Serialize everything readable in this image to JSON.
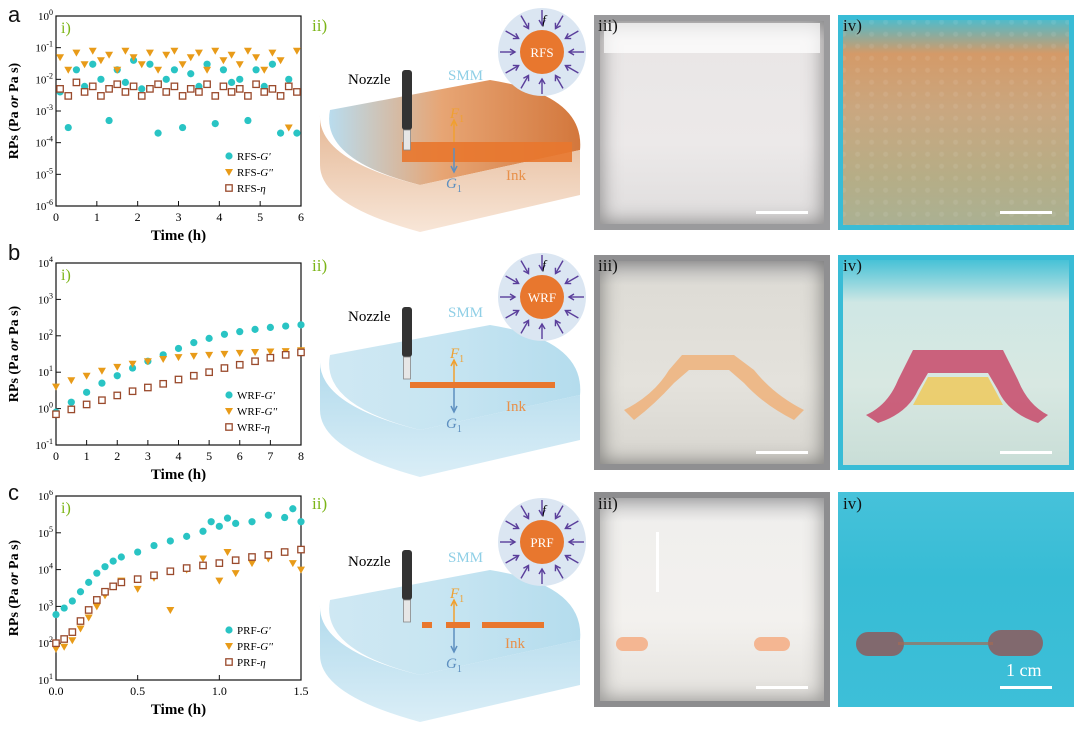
{
  "panels": {
    "a": {
      "letter": "a",
      "sub_i": "i)",
      "sub_ii": "ii)",
      "sub_iii": "iii)",
      "sub_iv": "iv)",
      "fluid": "RFS"
    },
    "b": {
      "letter": "b",
      "sub_i": "i)",
      "sub_ii": "ii)",
      "sub_iii": "iii)",
      "sub_iv": "iv)",
      "fluid": "WRF"
    },
    "c": {
      "letter": "c",
      "sub_i": "i)",
      "sub_ii": "ii)",
      "sub_iii": "iii)",
      "sub_iv": "iv)",
      "fluid": "PRF"
    }
  },
  "schematic": {
    "nozzle": "Nozzle",
    "smm": "SMM",
    "ink": "Ink",
    "force_up": "F",
    "force_down": "G",
    "subscript": "1",
    "f_label": "f"
  },
  "scale_bar_label": "1 cm",
  "colors": {
    "cyan": "#29c4c4",
    "orange": "#e89b19",
    "brown": "#9a4a2c",
    "green_label": "#7cb518",
    "ink_orange": "#e8772e"
  },
  "chart_data": [
    {
      "type": "scatter",
      "ylabel": "RPs (Pa or Pa s)",
      "xlabel": "Time (h)",
      "xlim": [
        0,
        6
      ],
      "xticks": [
        "0",
        "1",
        "2",
        "3",
        "4",
        "5",
        "6"
      ],
      "ylim_log": [
        -6,
        0
      ],
      "yticks": [
        "10^-6",
        "10^-5",
        "10^-4",
        "10^-3",
        "10^-2",
        "10^-1",
        "10^0"
      ],
      "legend_position": "bottom-right",
      "series": [
        {
          "name": "RFS-G'",
          "marker": "circle",
          "color": "#29c4c4",
          "x": [
            0.1,
            0.3,
            0.5,
            0.7,
            0.9,
            1.1,
            1.3,
            1.5,
            1.7,
            1.9,
            2.1,
            2.3,
            2.5,
            2.7,
            2.9,
            3.1,
            3.3,
            3.5,
            3.7,
            3.9,
            4.1,
            4.3,
            4.5,
            4.7,
            4.9,
            5.1,
            5.3,
            5.5,
            5.7,
            5.9
          ],
          "y": [
            0.004,
            0.0003,
            0.02,
            0.006,
            0.03,
            0.01,
            0.0005,
            0.02,
            0.008,
            0.04,
            0.005,
            0.03,
            0.0002,
            0.01,
            0.02,
            0.0003,
            0.015,
            0.006,
            0.03,
            0.0004,
            0.02,
            0.008,
            0.01,
            0.0005,
            0.02,
            0.006,
            0.03,
            0.0002,
            0.01,
            0.0002
          ]
        },
        {
          "name": "RFS-G''",
          "marker": "triangle-down",
          "color": "#e89b19",
          "x": [
            0.1,
            0.3,
            0.5,
            0.7,
            0.9,
            1.1,
            1.3,
            1.5,
            1.7,
            1.9,
            2.1,
            2.3,
            2.5,
            2.7,
            2.9,
            3.1,
            3.3,
            3.5,
            3.7,
            3.9,
            4.1,
            4.3,
            4.5,
            4.7,
            4.9,
            5.1,
            5.3,
            5.5,
            5.7,
            5.9
          ],
          "y": [
            0.05,
            0.02,
            0.07,
            0.03,
            0.08,
            0.04,
            0.06,
            0.02,
            0.08,
            0.05,
            0.03,
            0.07,
            0.02,
            0.06,
            0.08,
            0.03,
            0.05,
            0.07,
            0.02,
            0.08,
            0.04,
            0.06,
            0.03,
            0.08,
            0.05,
            0.02,
            0.07,
            0.04,
            0.0003,
            0.08
          ]
        },
        {
          "name": "RFS-η",
          "marker": "square",
          "color": "#9a4a2c",
          "x": [
            0.1,
            0.3,
            0.5,
            0.7,
            0.9,
            1.1,
            1.3,
            1.5,
            1.7,
            1.9,
            2.1,
            2.3,
            2.5,
            2.7,
            2.9,
            3.1,
            3.3,
            3.5,
            3.7,
            3.9,
            4.1,
            4.3,
            4.5,
            4.7,
            4.9,
            5.1,
            5.3,
            5.5,
            5.7,
            5.9
          ],
          "y": [
            0.005,
            0.003,
            0.008,
            0.004,
            0.006,
            0.003,
            0.005,
            0.007,
            0.004,
            0.006,
            0.003,
            0.005,
            0.007,
            0.004,
            0.006,
            0.003,
            0.005,
            0.004,
            0.007,
            0.003,
            0.006,
            0.004,
            0.005,
            0.003,
            0.007,
            0.004,
            0.005,
            0.003,
            0.006,
            0.004
          ]
        }
      ]
    },
    {
      "type": "scatter",
      "ylabel": "RPs (Pa or Pa s)",
      "xlabel": "Time (h)",
      "xlim": [
        0,
        8
      ],
      "xticks": [
        "0",
        "1",
        "2",
        "3",
        "4",
        "5",
        "6",
        "7",
        "8"
      ],
      "ylim_log": [
        -1,
        4
      ],
      "yticks": [
        "10^-1",
        "10^0",
        "10^1",
        "10^2",
        "10^3",
        "10^4"
      ],
      "legend_position": "bottom-right",
      "series": [
        {
          "name": "WRF-G'",
          "marker": "circle",
          "color": "#29c4c4",
          "x": [
            0,
            0.5,
            1,
            1.5,
            2,
            2.5,
            3,
            3.5,
            4,
            4.5,
            5,
            5.5,
            6,
            6.5,
            7,
            7.5,
            8
          ],
          "y": [
            0.8,
            1.5,
            2.8,
            5,
            8,
            13,
            20,
            30,
            45,
            65,
            85,
            110,
            130,
            150,
            170,
            185,
            200
          ]
        },
        {
          "name": "WRF-G''",
          "marker": "triangle-down",
          "color": "#e89b19",
          "x": [
            0,
            0.5,
            1,
            1.5,
            2,
            2.5,
            3,
            3.5,
            4,
            4.5,
            5,
            5.5,
            6,
            6.5,
            7,
            7.5,
            8
          ],
          "y": [
            4,
            6,
            8,
            11,
            14,
            17,
            20,
            23,
            26,
            28,
            30,
            32,
            34,
            36,
            37,
            38,
            40
          ]
        },
        {
          "name": "WRF-η",
          "marker": "square",
          "color": "#9a4a2c",
          "x": [
            0,
            0.5,
            1,
            1.5,
            2,
            2.5,
            3,
            3.5,
            4,
            4.5,
            5,
            5.5,
            6,
            6.5,
            7,
            7.5,
            8
          ],
          "y": [
            0.7,
            0.95,
            1.3,
            1.7,
            2.3,
            3,
            3.8,
            4.8,
            6.3,
            8,
            10,
            13,
            16,
            20,
            25,
            30,
            35
          ]
        }
      ]
    },
    {
      "type": "scatter",
      "ylabel": "RPs (Pa or Pa s)",
      "xlabel": "Time (h)",
      "xlim": [
        0,
        1.5
      ],
      "xticks": [
        "0.0",
        "0.5",
        "1.0",
        "1.5"
      ],
      "ylim_log": [
        1,
        6
      ],
      "yticks": [
        "10^1",
        "10^2",
        "10^3",
        "10^4",
        "10^5",
        "10^6"
      ],
      "legend_position": "bottom-right",
      "series": [
        {
          "name": "PRF-G'",
          "marker": "circle",
          "color": "#29c4c4",
          "x": [
            0,
            0.05,
            0.1,
            0.15,
            0.2,
            0.25,
            0.3,
            0.35,
            0.4,
            0.5,
            0.6,
            0.7,
            0.8,
            0.9,
            0.95,
            1.0,
            1.05,
            1.1,
            1.2,
            1.3,
            1.4,
            1.45,
            1.5
          ],
          "y": [
            600,
            900,
            1400,
            2500,
            4500,
            8000,
            12000,
            17000,
            22000,
            30000,
            45000,
            60000,
            80000,
            110000,
            200000,
            150000,
            250000,
            180000,
            200000,
            300000,
            260000,
            450000,
            200000
          ]
        },
        {
          "name": "PRF-G''",
          "marker": "triangle-down",
          "color": "#e89b19",
          "x": [
            0,
            0.05,
            0.1,
            0.15,
            0.2,
            0.25,
            0.3,
            0.35,
            0.4,
            0.5,
            0.6,
            0.7,
            0.8,
            0.9,
            1.0,
            1.05,
            1.1,
            1.2,
            1.3,
            1.4,
            1.45,
            1.5
          ],
          "y": [
            70,
            80,
            120,
            250,
            500,
            1000,
            2000,
            3500,
            5000,
            3000,
            6000,
            800,
            10000,
            20000,
            5000,
            30000,
            8000,
            15000,
            20000,
            30000,
            15000,
            10000
          ]
        },
        {
          "name": "PRF-η",
          "marker": "square",
          "color": "#9a4a2c",
          "x": [
            0,
            0.05,
            0.1,
            0.15,
            0.2,
            0.25,
            0.3,
            0.35,
            0.4,
            0.5,
            0.6,
            0.7,
            0.8,
            0.9,
            1.0,
            1.1,
            1.2,
            1.3,
            1.4,
            1.5
          ],
          "y": [
            100,
            130,
            200,
            400,
            800,
            1500,
            2500,
            3500,
            4500,
            5500,
            7000,
            9000,
            11000,
            13000,
            15000,
            18000,
            22000,
            25000,
            30000,
            35000
          ]
        }
      ]
    }
  ]
}
